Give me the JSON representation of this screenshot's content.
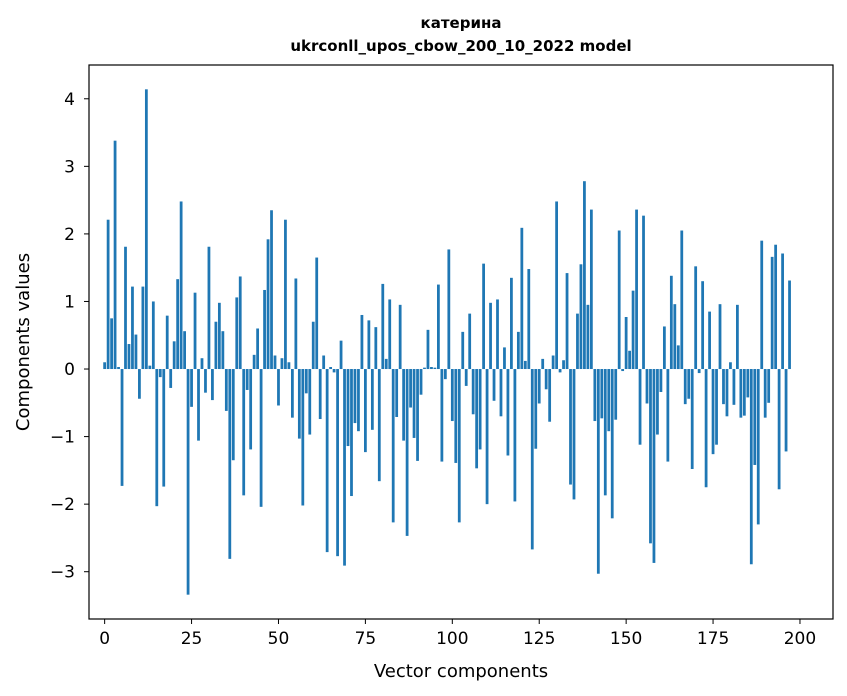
{
  "chart_data": {
    "type": "bar",
    "title_line1": "катерина",
    "title_line2": "ukrconll_upos_cbow_200_10_2022 model",
    "xlabel": "Vector components",
    "ylabel": "Components values",
    "xlim": [
      -4.5,
      209.5
    ],
    "ylim": [
      -3.7,
      4.5
    ],
    "xticks": [
      0,
      25,
      50,
      75,
      100,
      125,
      150,
      175,
      200
    ],
    "yticks": [
      -3,
      -2,
      -1,
      0,
      1,
      2,
      3,
      4
    ],
    "ytick_labels": [
      "−3",
      "−2",
      "−1",
      "0",
      "1",
      "2",
      "3",
      "4"
    ],
    "grid": false,
    "bar_color": "#1f77b4",
    "values": [
      0.1,
      2.21,
      0.75,
      3.38,
      0.03,
      -1.73,
      1.81,
      0.37,
      1.22,
      0.51,
      -0.44,
      1.22,
      4.14,
      0.05,
      1.0,
      -2.03,
      -0.12,
      -1.74,
      0.79,
      -0.28,
      0.41,
      1.33,
      2.48,
      0.56,
      -3.34,
      -0.56,
      1.13,
      -1.06,
      0.16,
      -0.35,
      1.81,
      -0.46,
      0.7,
      0.98,
      0.56,
      -0.62,
      -2.81,
      -1.35,
      1.06,
      1.37,
      -1.87,
      -0.31,
      -1.19,
      0.21,
      0.6,
      -2.04,
      1.17,
      1.92,
      2.35,
      0.2,
      -0.54,
      0.16,
      2.21,
      0.1,
      -0.72,
      1.34,
      -1.03,
      -2.02,
      -0.36,
      -0.97,
      0.7,
      1.65,
      -0.74,
      0.2,
      -2.71,
      0.03,
      -0.05,
      -2.77,
      0.42,
      -2.91,
      -1.14,
      -1.88,
      -0.8,
      -0.92,
      0.8,
      -1.23,
      0.72,
      -0.9,
      0.62,
      -1.66,
      1.26,
      0.15,
      1.03,
      -2.27,
      -0.71,
      0.95,
      -1.06,
      -2.47,
      -0.57,
      -1.02,
      -1.36,
      -0.38,
      0.02,
      0.58,
      0.03,
      0.02,
      1.25,
      -1.37,
      -0.15,
      1.77,
      -0.77,
      -1.39,
      -2.27,
      0.55,
      -0.25,
      0.82,
      -0.67,
      -1.47,
      -1.19,
      1.56,
      -2.0,
      0.98,
      -0.47,
      1.03,
      -0.7,
      0.32,
      -1.28,
      1.35,
      -1.96,
      0.55,
      2.09,
      0.12,
      1.48,
      -2.67,
      -1.18,
      -0.51,
      0.15,
      -0.3,
      -0.78,
      0.2,
      2.48,
      -0.05,
      0.13,
      1.42,
      -1.71,
      -1.93,
      0.82,
      1.55,
      2.78,
      0.95,
      2.36,
      -0.77,
      -3.03,
      -0.73,
      -1.87,
      -0.92,
      -2.21,
      -0.75,
      2.05,
      -0.03,
      0.77,
      0.27,
      1.16,
      2.36,
      -1.12,
      2.27,
      -0.51,
      -2.58,
      -2.87,
      -0.97,
      -0.34,
      0.63,
      -1.37,
      1.38,
      0.96,
      0.35,
      2.05,
      -0.52,
      -0.44,
      -1.48,
      1.52,
      -0.06,
      1.3,
      -1.75,
      0.85,
      -1.26,
      -1.12,
      0.96,
      -0.52,
      -0.7,
      0.1,
      -0.53,
      0.95,
      -0.72,
      -0.69,
      -0.42,
      -2.89,
      -1.42,
      -2.3,
      1.9,
      -0.72,
      -0.5,
      1.66,
      1.84,
      -1.78,
      1.71,
      -1.22,
      1.31
    ]
  }
}
